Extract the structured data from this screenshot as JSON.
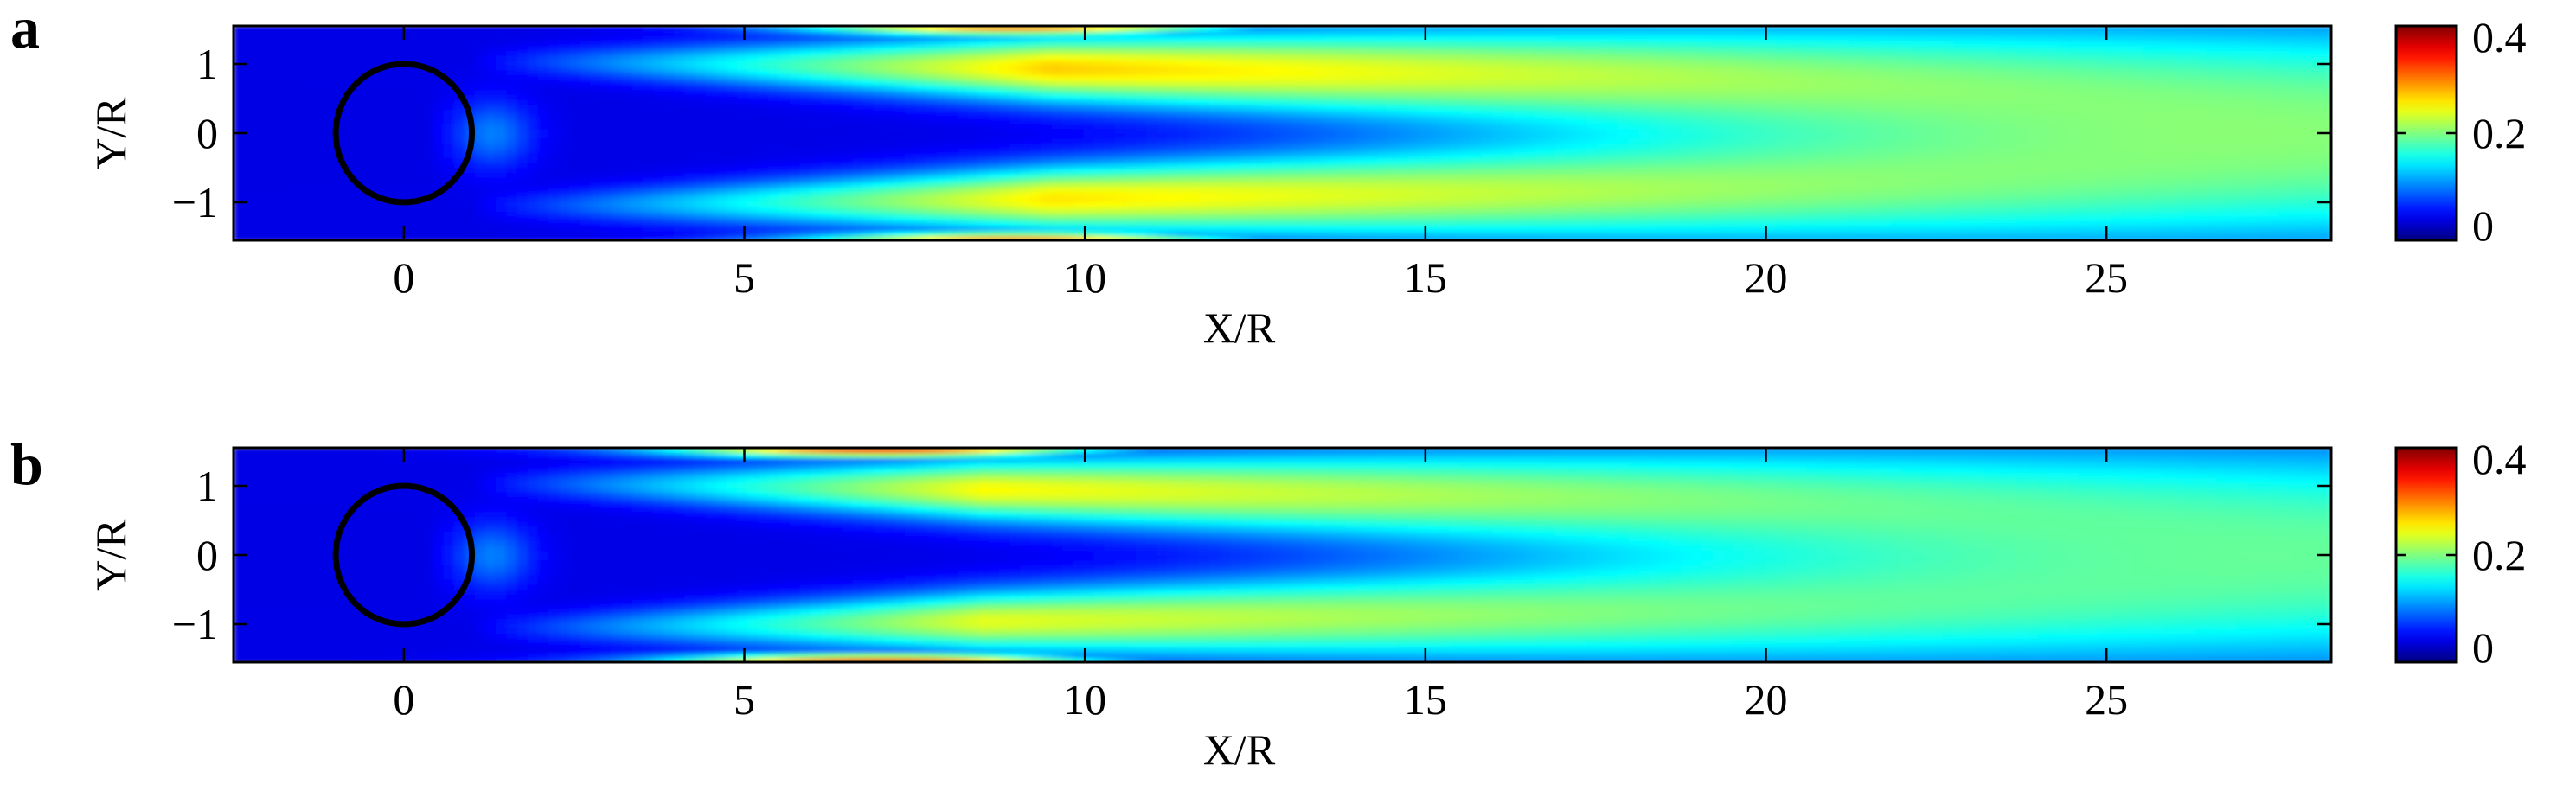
{
  "chart_data": [
    {
      "type": "heatmap",
      "panel_label": "a",
      "xlabel": "X/R",
      "ylabel": "Y/R",
      "xlim": [
        -2.5,
        28.3
      ],
      "ylim": [
        -1.55,
        1.55
      ],
      "xticks": [
        0,
        5,
        10,
        15,
        20,
        25
      ],
      "yticks": [
        -1,
        0,
        1
      ],
      "colorbar": {
        "min": 0,
        "max": 0.4,
        "ticks": [
          0,
          0.2,
          0.4
        ],
        "colormap": "jet"
      },
      "circle": {
        "center": [
          0,
          0
        ],
        "radius": 1
      },
      "shear_layers": [
        {
          "y_center": 1.05,
          "peak_x": 9.5,
          "peak_value": 0.27,
          "end_x": 28.3,
          "end_value": 0.16
        },
        {
          "y_center": -1.05,
          "peak_x": 9.5,
          "peak_value": 0.26,
          "end_x": 28.3,
          "end_value": 0.16
        }
      ],
      "edge_max": {
        "x": 9,
        "value": 0.3
      },
      "core_value": 0.05,
      "background_value": 0.04
    },
    {
      "type": "heatmap",
      "panel_label": "b",
      "xlabel": "X/R",
      "ylabel": "Y/R",
      "xlim": [
        -2.5,
        28.3
      ],
      "ylim": [
        -1.55,
        1.55
      ],
      "xticks": [
        0,
        5,
        10,
        15,
        20,
        25
      ],
      "yticks": [
        -1,
        0,
        1
      ],
      "colorbar": {
        "min": 0,
        "max": 0.4,
        "ticks": [
          0,
          0.2,
          0.4
        ],
        "colormap": "jet"
      },
      "circle": {
        "center": [
          0,
          0
        ],
        "radius": 1
      },
      "shear_layers": [
        {
          "y_center": 1.05,
          "peak_x": 8.5,
          "peak_value": 0.25,
          "end_x": 28.3,
          "end_value": 0.15
        },
        {
          "y_center": -1.05,
          "peak_x": 8.5,
          "peak_value": 0.24,
          "end_x": 28.3,
          "end_value": 0.15
        }
      ],
      "edge_max": {
        "x": 7,
        "value": 0.33
      },
      "core_value": 0.05,
      "background_value": 0.04
    }
  ]
}
